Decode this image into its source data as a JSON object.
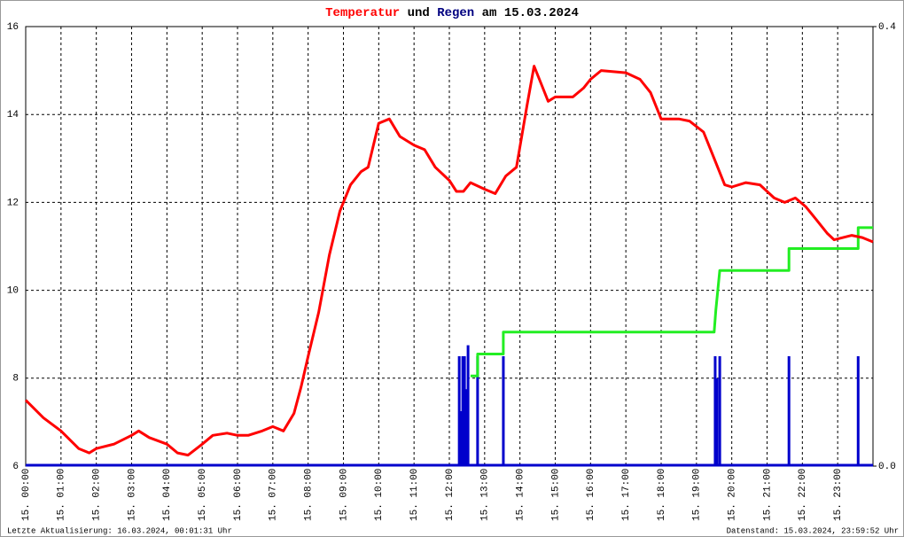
{
  "chart_data": {
    "type": "line",
    "title": [
      {
        "text": "Temperatur",
        "color": "#ff0000"
      },
      {
        "text": "und",
        "color": "#000000"
      },
      {
        "text": "Regen",
        "color": "#000080"
      },
      {
        "text": "am 15.03.2024",
        "color": "#000000"
      }
    ],
    "xlim": [
      0,
      24
    ],
    "xticks": [
      {
        "value": 0,
        "label": "15. 00:00"
      },
      {
        "value": 1,
        "label": "15. 01:00"
      },
      {
        "value": 2,
        "label": "15. 02:00"
      },
      {
        "value": 3,
        "label": "15. 03:00"
      },
      {
        "value": 4,
        "label": "15. 04:00"
      },
      {
        "value": 5,
        "label": "15. 05:00"
      },
      {
        "value": 6,
        "label": "15. 06:00"
      },
      {
        "value": 7,
        "label": "15. 07:00"
      },
      {
        "value": 8,
        "label": "15. 08:00"
      },
      {
        "value": 9,
        "label": "15. 09:00"
      },
      {
        "value": 10,
        "label": "15. 10:00"
      },
      {
        "value": 11,
        "label": "15. 11:00"
      },
      {
        "value": 12,
        "label": "15. 12:00"
      },
      {
        "value": 13,
        "label": "15. 13:00"
      },
      {
        "value": 14,
        "label": "15. 14:00"
      },
      {
        "value": 15,
        "label": "15. 15:00"
      },
      {
        "value": 16,
        "label": "15. 16:00"
      },
      {
        "value": 17,
        "label": "15. 17:00"
      },
      {
        "value": 18,
        "label": "15. 18:00"
      },
      {
        "value": 19,
        "label": "15. 19:00"
      },
      {
        "value": 20,
        "label": "15. 20:00"
      },
      {
        "value": 21,
        "label": "15. 21:00"
      },
      {
        "value": 22,
        "label": "15. 22:00"
      },
      {
        "value": 23,
        "label": "15. 23:00"
      }
    ],
    "ylim": [
      6,
      16
    ],
    "yticks": [
      6,
      8,
      10,
      12,
      14,
      16
    ],
    "y2lim": [
      0,
      0.4
    ],
    "y2ticks": [
      {
        "value": 0,
        "label": "0.0"
      },
      {
        "value": 0.4,
        "label": "0.4"
      }
    ],
    "grid": true,
    "series": [
      {
        "type": "line",
        "color": "#ff0000",
        "x": [
          0,
          0.5,
          1,
          1.5,
          1.8,
          2,
          2.5,
          3,
          3.2,
          3.5,
          4,
          4.3,
          4.6,
          5,
          5.3,
          5.7,
          6,
          6.3,
          6.7,
          7,
          7.3,
          7.6,
          7.8,
          8,
          8.3,
          8.6,
          8.9,
          9.2,
          9.5,
          9.7,
          10,
          10.3,
          10.6,
          11,
          11.3,
          11.6,
          12,
          12.2,
          12.4,
          12.6,
          13,
          13.3,
          13.6,
          13.9,
          14.2,
          14.4,
          14.6,
          14.8,
          15,
          15.5,
          15.8,
          16,
          16.3,
          17,
          17.4,
          17.7,
          18,
          18.5,
          18.8,
          19.2,
          19.5,
          19.8,
          20,
          20.4,
          20.8,
          21.2,
          21.5,
          21.8,
          22.1,
          22.4,
          22.7,
          22.9,
          23.4,
          23.7,
          24
        ],
        "values": [
          7.5,
          7.1,
          6.8,
          6.4,
          6.3,
          6.4,
          6.5,
          6.7,
          6.8,
          6.65,
          6.5,
          6.3,
          6.25,
          6.5,
          6.7,
          6.75,
          6.7,
          6.7,
          6.8,
          6.9,
          6.8,
          7.2,
          7.8,
          8.5,
          9.5,
          10.8,
          11.8,
          12.4,
          12.7,
          12.8,
          13.8,
          13.9,
          13.5,
          13.3,
          13.2,
          12.8,
          12.5,
          12.25,
          12.25,
          12.45,
          12.3,
          12.2,
          12.6,
          12.8,
          14.2,
          15.1,
          14.7,
          14.3,
          14.4,
          14.4,
          14.6,
          14.8,
          15,
          14.95,
          14.8,
          14.5,
          13.9,
          13.9,
          13.85,
          13.6,
          13,
          12.4,
          12.35,
          12.45,
          12.4,
          12.1,
          12,
          12.1,
          11.9,
          11.6,
          11.3,
          11.15,
          11.25,
          11.2,
          11.1
        ]
      },
      {
        "type": "bar",
        "axis": "y2",
        "color": "#0000cc",
        "x": [
          12.28,
          12.33,
          12.38,
          12.43,
          12.48,
          12.53,
          12.8,
          13.53,
          19.53,
          19.58,
          19.66,
          21.62,
          23.58
        ],
        "values": [
          0.1,
          0.05,
          0.1,
          0.1,
          0.07,
          0.11,
          0.1,
          0.1,
          0.1,
          0.08,
          0.1,
          0.1,
          0.1
        ]
      },
      {
        "type": "line",
        "axis": "y2",
        "color": "#22ee22",
        "x": [
          12.6,
          12.8,
          12.8,
          13.53,
          13.53,
          19.5,
          19.55,
          19.66,
          21.62,
          21.62,
          23.58,
          23.58,
          24
        ],
        "values": [
          0.082,
          0.082,
          0.102,
          0.102,
          0.122,
          0.122,
          0.142,
          0.178,
          0.178,
          0.198,
          0.198,
          0.217,
          0.217
        ]
      }
    ],
    "footer_left": "Letzte Aktualisierung: 16.03.2024, 00:01:31 Uhr",
    "footer_right": "Datenstand: 15.03.2024, 23:59:52 Uhr"
  }
}
